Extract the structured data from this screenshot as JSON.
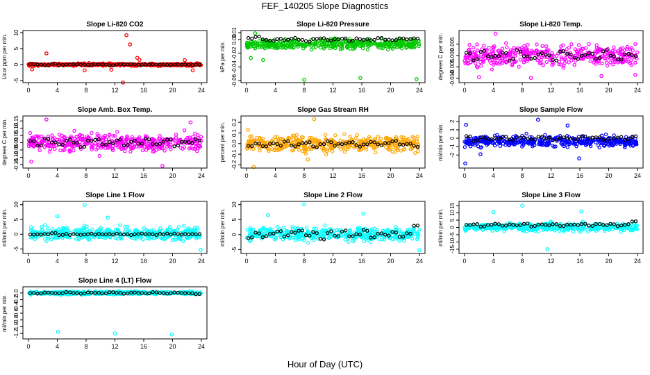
{
  "figure": {
    "title": "FEF_140205  Slope Diagnostics",
    "xlabel": "Hour of Day (UTC)"
  },
  "chart_data": [
    {
      "type": "scatter",
      "title": "Slope Li-820 CO2",
      "ylabel": "Licor ppm per min.",
      "color": "#ff0000",
      "xlim": [
        0,
        24
      ],
      "ylim": [
        -5,
        10
      ],
      "xticks": [
        0,
        4,
        8,
        12,
        16,
        20,
        24
      ],
      "yticks": [
        -5,
        0,
        5,
        10
      ],
      "ytick_labels": [
        "-5",
        "0",
        "5",
        "10"
      ],
      "band": [
        -0.6,
        0.6
      ],
      "hourly_black": [
        0.1,
        0.0,
        -0.2,
        0.2,
        -0.1,
        0.0,
        0.1,
        0.0,
        -0.1,
        0.1,
        0.0,
        -0.2,
        0.1,
        0.0,
        0.1,
        -0.1,
        0.0,
        0.1,
        0.0,
        -0.1,
        0.1,
        0.0,
        -0.1,
        0.0
      ],
      "outliers": [
        [
          2.5,
          3.5
        ],
        [
          0.5,
          -1.5
        ],
        [
          7.8,
          -1.8
        ],
        [
          11.5,
          -1.6
        ],
        [
          13.1,
          -5.6
        ],
        [
          13.6,
          9.2
        ],
        [
          14.1,
          6.3
        ],
        [
          15.1,
          2.1
        ],
        [
          15.4,
          1.5
        ],
        [
          21.7,
          1.4
        ],
        [
          22.8,
          -1.8
        ]
      ]
    },
    {
      "type": "scatter",
      "title": "Slope Li-820 Pressure",
      "ylabel": "kPa per min.",
      "color": "#00c800",
      "xlim": [
        0,
        24
      ],
      "ylim": [
        -0.06,
        0.01
      ],
      "xticks": [
        0,
        4,
        8,
        12,
        16,
        20,
        24
      ],
      "yticks": [
        -0.06,
        -0.04,
        -0.02,
        0.0,
        0.01
      ],
      "ytick_labels": [
        "-0.06",
        "-0.04",
        "-0.02",
        "0.00",
        "0.01"
      ],
      "band": [
        -0.018,
        0.004
      ],
      "hourly_black": [
        0.002,
        0.004,
        0.0,
        -0.002,
        0.001,
        -0.001,
        0.002,
        0.0,
        -0.003,
        0.001,
        0.002,
        -0.001,
        0.0,
        0.001,
        -0.002,
        0.001,
        0.0,
        -0.001,
        0.002,
        0.0,
        -0.001,
        0.001,
        0.0,
        0.002
      ],
      "outliers": [
        [
          1.2,
          0.009
        ],
        [
          0.6,
          -0.027
        ],
        [
          8.0,
          -0.059
        ],
        [
          15.8,
          -0.056
        ],
        [
          23.6,
          -0.058
        ],
        [
          2.3,
          -0.03
        ]
      ]
    },
    {
      "type": "scatter",
      "title": "Slope Li-820 Temp.",
      "ylabel": "degrees C per min.",
      "color": "#ff00ff",
      "xlim": [
        0,
        24
      ],
      "ylim": [
        -0.011,
        0.01
      ],
      "xticks": [
        0,
        4,
        8,
        12,
        16,
        20,
        24
      ],
      "yticks": [
        -0.01,
        -0.005,
        0.0,
        0.005
      ],
      "ytick_labels": [
        "-0.010",
        "-0.005",
        "0.000",
        "0.005"
      ],
      "band": [
        -0.007,
        0.007
      ],
      "hourly_black": [
        0.001,
        -0.002,
        0.002,
        -0.001,
        0.0,
        0.001,
        -0.002,
        0.002,
        0.0,
        -0.001,
        0.001,
        0.0,
        -0.002,
        0.002,
        0.001,
        -0.001,
        0.0,
        0.001,
        -0.001,
        0.002,
        0.0,
        -0.002,
        0.001,
        0.0
      ],
      "outliers": [
        [
          4.3,
          0.0095
        ],
        [
          2.0,
          -0.0095
        ],
        [
          9.2,
          -0.0098
        ],
        [
          19.0,
          -0.009
        ],
        [
          23.7,
          -0.0085
        ]
      ]
    },
    {
      "type": "scatter",
      "title": "Slope Amb. Box Temp.",
      "ylabel": "degrees C per min.",
      "color": "#ff00ff",
      "xlim": [
        0,
        24
      ],
      "ylim": [
        -0.16,
        0.17
      ],
      "xticks": [
        0,
        4,
        8,
        12,
        16,
        20,
        24
      ],
      "yticks": [
        -0.15,
        -0.1,
        -0.05,
        0.0,
        0.05,
        0.1,
        0.15
      ],
      "ytick_labels": [
        "-0.15",
        "-0.10",
        "-0.05",
        "0.00",
        "0.05",
        "0.10",
        "0.15"
      ],
      "band": [
        -0.09,
        0.09
      ],
      "hourly_black": [
        0.01,
        -0.02,
        0.03,
        0.0,
        -0.01,
        0.02,
        0.0,
        -0.03,
        0.01,
        0.02,
        -0.01,
        0.0,
        0.02,
        -0.02,
        0.01,
        0.0,
        0.03,
        -0.01,
        0.0,
        0.02,
        -0.02,
        0.01,
        0.0,
        0.02
      ],
      "outliers": [
        [
          2.5,
          0.16
        ],
        [
          18.6,
          -0.16
        ],
        [
          0.4,
          -0.13
        ],
        [
          22.5,
          0.14
        ]
      ]
    },
    {
      "type": "scatter",
      "title": "Slope Gas Stream RH",
      "ylabel": "percent per min.",
      "color": "#ffa500",
      "xlim": [
        0,
        24
      ],
      "ylim": [
        -0.21,
        0.24
      ],
      "xticks": [
        0,
        4,
        8,
        12,
        16,
        20,
        24
      ],
      "yticks": [
        -0.2,
        -0.1,
        0.0,
        0.1,
        0.2
      ],
      "ytick_labels": [
        "-0.2",
        "-0.1",
        "0.0",
        "0.1",
        "0.2"
      ],
      "band": [
        -0.12,
        0.12
      ],
      "hourly_black": [
        -0.02,
        0.01,
        -0.03,
        0.0,
        -0.01,
        0.02,
        -0.02,
        0.0,
        0.01,
        -0.03,
        0.0,
        0.02,
        -0.01,
        0.0,
        0.01,
        -0.02,
        0.0,
        0.01,
        -0.01,
        0.0,
        0.02,
        -0.01,
        0.0,
        -0.02
      ],
      "outliers": [
        [
          1.0,
          -0.22
        ],
        [
          9.4,
          0.23
        ],
        [
          0.2,
          0.13
        ],
        [
          8.5,
          -0.15
        ]
      ]
    },
    {
      "type": "scatter",
      "title": "Slope Sample Flow",
      "ylabel": "ml/min per min.",
      "color": "#0000ff",
      "xlim": [
        0,
        24
      ],
      "ylim": [
        -3.3,
        2.4
      ],
      "xticks": [
        0,
        4,
        8,
        12,
        16,
        20,
        24
      ],
      "yticks": [
        -2,
        -1,
        0,
        1,
        2
      ],
      "ytick_labels": [
        "-2",
        "-1",
        "0",
        "1",
        "2"
      ],
      "band": [
        -1.4,
        0.6
      ],
      "hourly_black": [
        0.2,
        -0.3,
        0.1,
        -0.1,
        0.0,
        0.2,
        -0.2,
        0.1,
        0.0,
        -0.1,
        0.2,
        0.0,
        -0.2,
        0.1,
        0.0,
        -0.1,
        0.2,
        0.0,
        0.1,
        -0.2,
        0.0,
        0.1,
        -0.1,
        0.2
      ],
      "outliers": [
        [
          0.1,
          -3.0
        ],
        [
          0.2,
          1.6
        ],
        [
          10.2,
          2.2
        ],
        [
          14.3,
          1.5
        ],
        [
          15.9,
          -2.4
        ],
        [
          2.2,
          -1.9
        ]
      ]
    },
    {
      "type": "scatter",
      "title": "Slope Line 1 Flow",
      "ylabel": "ml/min per min.",
      "color": "#00ffff",
      "xlim": [
        0,
        24
      ],
      "ylim": [
        -5.8,
        10.4
      ],
      "xticks": [
        0,
        4,
        8,
        12,
        16,
        20,
        24
      ],
      "yticks": [
        -5,
        0,
        5,
        10
      ],
      "ytick_labels": [
        "-5",
        "0",
        "5",
        "10"
      ],
      "band": [
        -3.0,
        3.5
      ],
      "hourly_black": [
        0.1,
        -0.1,
        0.0,
        0.2,
        -0.1,
        0.0,
        0.1,
        -0.2,
        0.0,
        0.1,
        -0.1,
        0.0,
        0.2,
        0.0,
        -0.1,
        0.1,
        0.0,
        -0.1,
        0.1,
        0.0,
        0.2,
        -0.1,
        0.0,
        0.1
      ],
      "outliers": [
        [
          7.8,
          9.9
        ],
        [
          23.9,
          -5.3
        ],
        [
          4.0,
          6.1
        ],
        [
          11.0,
          5.6
        ]
      ]
    },
    {
      "type": "scatter",
      "title": "Slope Line 2 Flow",
      "ylabel": "ml/min per min.",
      "color": "#00ffff",
      "xlim": [
        0,
        24
      ],
      "ylim": [
        -5.6,
        10.4
      ],
      "xticks": [
        0,
        4,
        8,
        12,
        16,
        20,
        24
      ],
      "yticks": [
        -5,
        0,
        5,
        10
      ],
      "ytick_labels": [
        "-5",
        "0",
        "5",
        "10"
      ],
      "band": [
        -3.0,
        3.5
      ],
      "hourly_black": [
        -1.0,
        0.5,
        -0.8,
        0.2,
        1.0,
        -0.5,
        0.8,
        1.2,
        -0.3,
        0.6,
        -1.5,
        0.9,
        -0.4,
        1.1,
        -0.6,
        0.3,
        1.4,
        -0.9,
        0.5,
        -0.2,
        1.0,
        -0.7,
        0.4,
        3.0
      ],
      "outliers": [
        [
          8.0,
          10.1
        ],
        [
          16.2,
          7.0
        ],
        [
          24.0,
          -5.2
        ],
        [
          3.0,
          6.5
        ]
      ]
    },
    {
      "type": "scatter",
      "title": "Slope Line 3 Flow",
      "ylabel": "ml/min per min.",
      "color": "#00ffff",
      "xlim": [
        0,
        24
      ],
      "ylim": [
        -16.5,
        16.5
      ],
      "xticks": [
        0,
        4,
        8,
        12,
        16,
        20,
        24
      ],
      "yticks": [
        -15,
        -10,
        -5,
        0,
        5,
        10,
        15
      ],
      "ytick_labels": [
        "-15",
        "-10",
        "-5",
        "0",
        "5",
        "10",
        "15"
      ],
      "band": [
        -4.0,
        4.5
      ],
      "hourly_black": [
        1.5,
        2.2,
        0.8,
        1.9,
        2.5,
        1.2,
        2.0,
        1.7,
        2.4,
        1.0,
        2.1,
        1.6,
        2.3,
        0.9,
        2.0,
        1.8,
        2.6,
        1.1,
        2.2,
        1.5,
        2.4,
        1.3,
        2.0,
        4.0
      ],
      "outliers": [
        [
          8.0,
          15.0
        ],
        [
          4.0,
          10.5
        ],
        [
          16.2,
          11.0
        ],
        [
          11.5,
          -15.0
        ]
      ]
    },
    {
      "type": "scatter",
      "title": "Slope Line 4 (LT) Flow",
      "ylabel": "ml/min per min.",
      "color": "#00ffff",
      "xlim": [
        0,
        24
      ],
      "ylim": [
        -1.3,
        0.12
      ],
      "xticks": [
        0,
        4,
        8,
        12,
        16,
        20,
        24
      ],
      "yticks": [
        -1.2,
        -1.0,
        -0.8,
        -0.6,
        -0.4,
        -0.2,
        0.0
      ],
      "ytick_labels": [
        "-1.2",
        "-1.0",
        "-0.8",
        "-0.6",
        "-0.4",
        "-0.2",
        "0.0"
      ],
      "band": [
        -0.07,
        0.07
      ],
      "hourly_black": [
        0.0,
        -0.02,
        0.01,
        0.0,
        -0.01,
        0.02,
        0.0,
        -0.02,
        0.01,
        0.0,
        -0.01,
        0.02,
        0.0,
        -0.02,
        0.01,
        0.0,
        -0.01,
        0.02,
        0.0,
        -0.02,
        0.01,
        0.0,
        -0.01,
        -0.03
      ],
      "outliers": [
        [
          4.1,
          -1.15
        ],
        [
          12.0,
          -1.2
        ],
        [
          19.9,
          -1.23
        ]
      ]
    }
  ]
}
